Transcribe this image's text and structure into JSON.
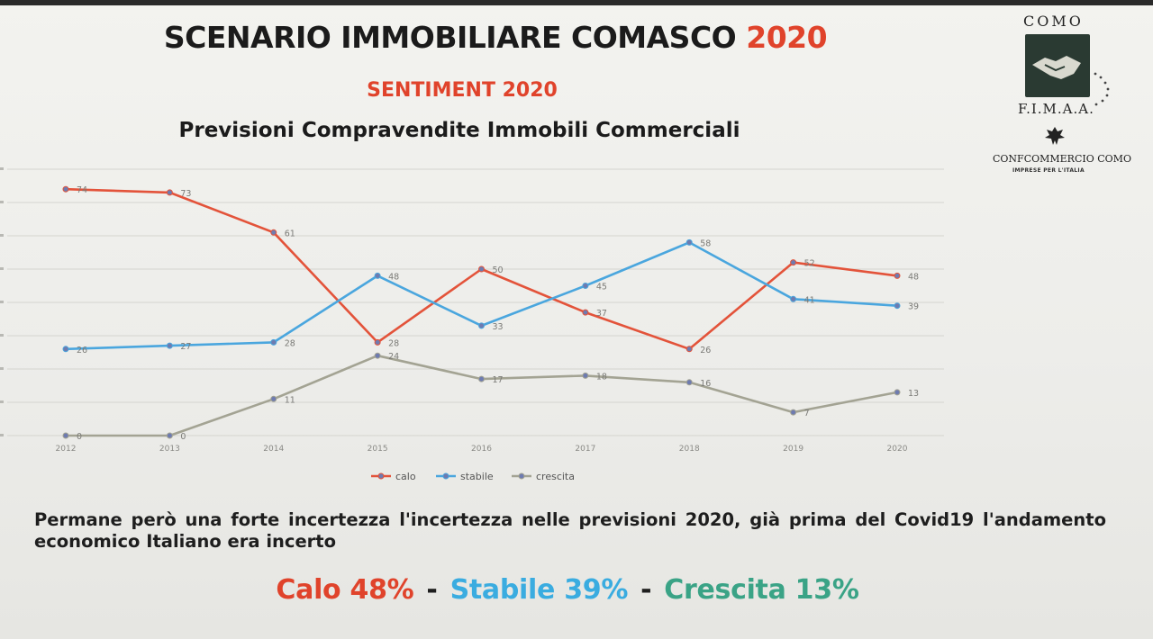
{
  "header": {
    "title_main": "SCENARIO IMMOBILIARE COMASCO",
    "title_year": "2020",
    "subtitle": "SENTIMENT 2020",
    "chart_title": "Previsioni  Compravendite Immobili Commerciali"
  },
  "logo": {
    "top_text": "COMO",
    "org": "F.I.M.A.A.",
    "confc": "CONFCOMMERCIO COMO",
    "tagline": "IMPRESE PER L'ITALIA"
  },
  "colors": {
    "calo": "#e3533a",
    "stabile": "#4aa6de",
    "crescita": "#a3a393",
    "red_text": "#e0432b",
    "blue_text": "#3aace0",
    "teal_text": "#3aa386"
  },
  "chart_data": {
    "type": "line",
    "title": "Previsioni  Compravendite Immobili Commerciali",
    "categories": [
      "2012",
      "2013",
      "2014",
      "2015",
      "2016",
      "2017",
      "2018",
      "2019",
      "2020"
    ],
    "series": [
      {
        "name": "calo",
        "values": [
          74,
          73,
          61,
          28,
          50,
          37,
          26,
          52,
          48
        ]
      },
      {
        "name": "stabile",
        "values": [
          26,
          27,
          28,
          48,
          33,
          45,
          58,
          41,
          39
        ]
      },
      {
        "name": "crescita",
        "values": [
          0,
          0,
          11,
          24,
          17,
          18,
          16,
          7,
          13
        ]
      }
    ],
    "ylim": [
      0,
      80
    ],
    "grid": true,
    "legend": "bottom",
    "xlabel": "",
    "ylabel": ""
  },
  "note": "Permane però una forte incertezza l'incertezza nelle previsioni 2020, già prima del Covid19 l'andamento economico Italiano era incerto",
  "summary": {
    "calo": "Calo 48%",
    "stabile": "Stabile 39%",
    "crescita": "Crescita 13%",
    "sep": "-"
  }
}
